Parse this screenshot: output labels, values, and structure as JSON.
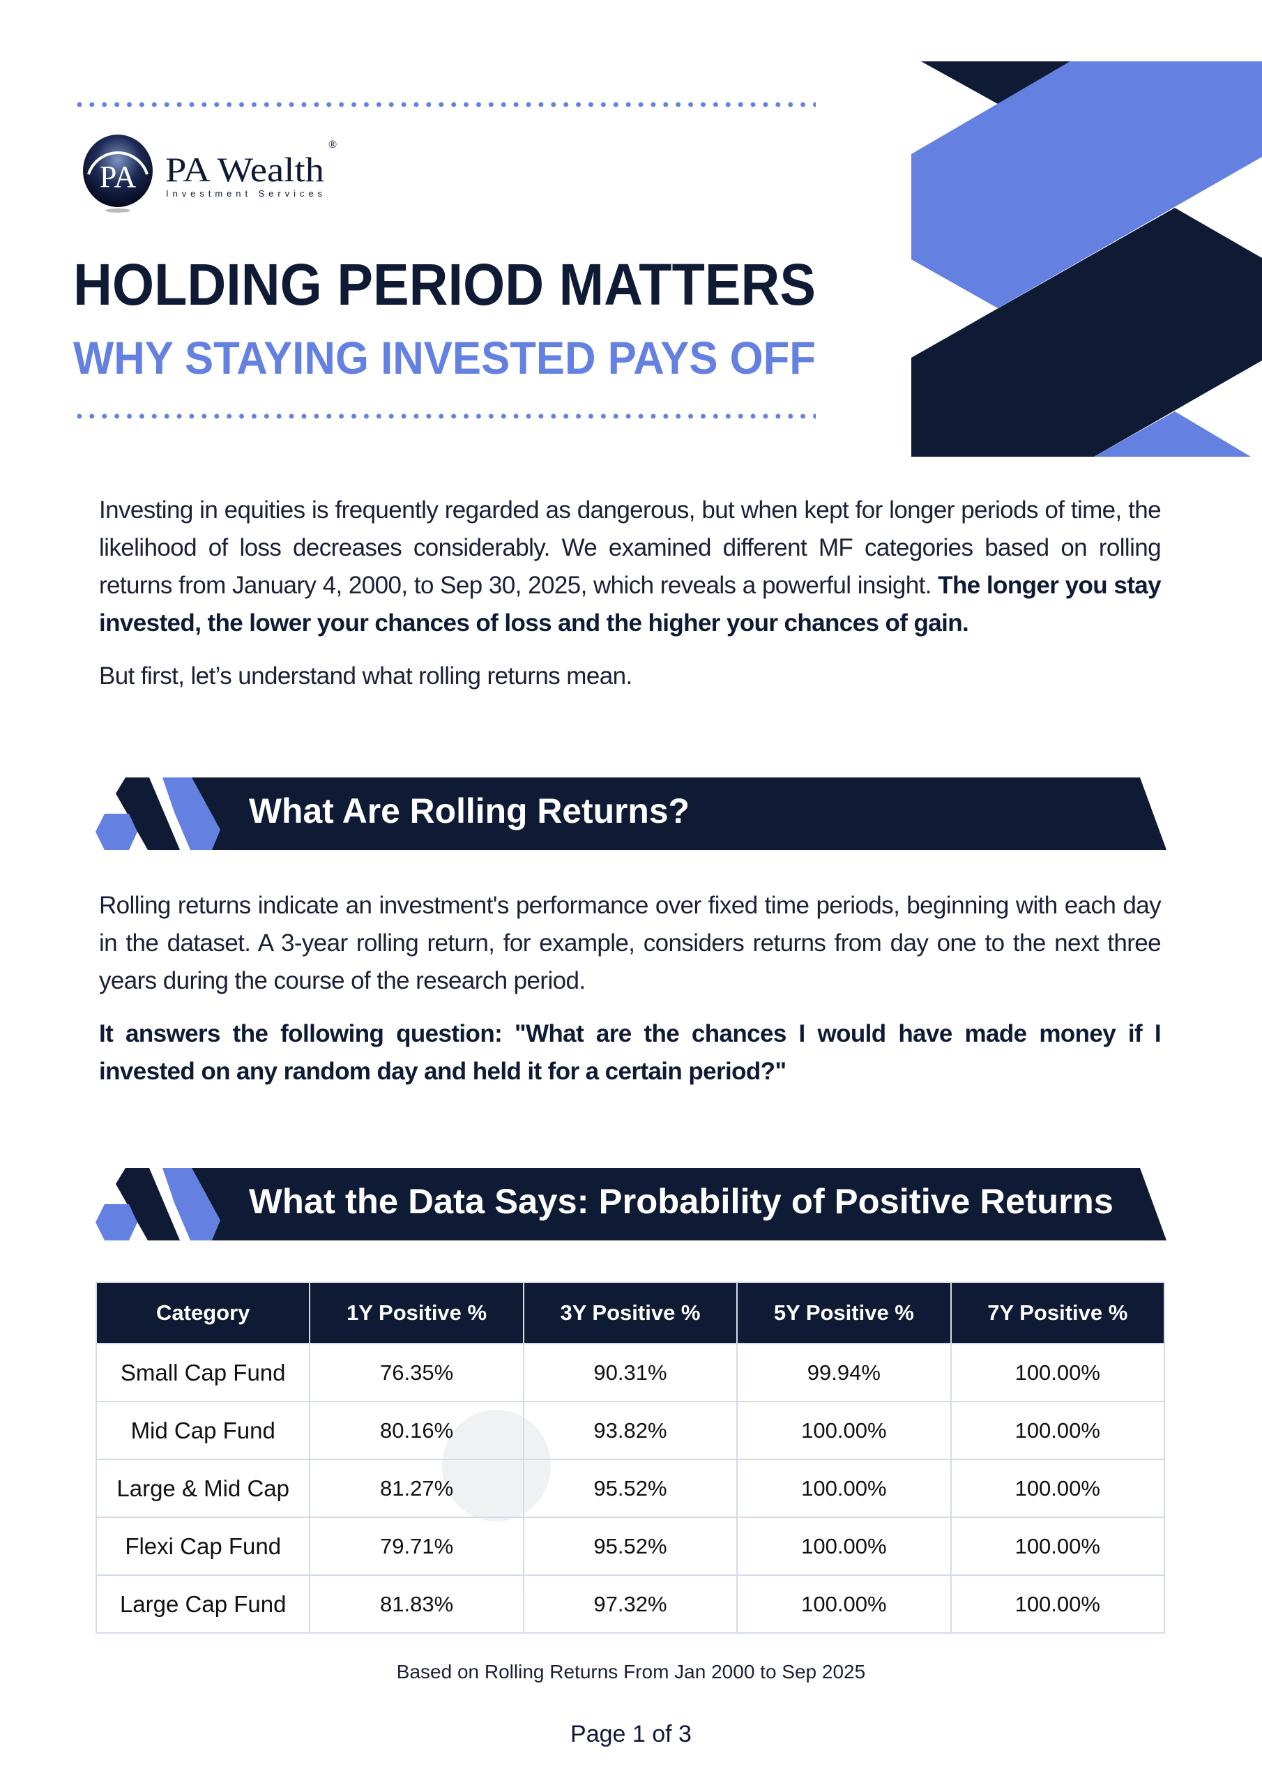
{
  "brand": {
    "name": "PA Wealth",
    "tagline": "Investment Services",
    "monogram": "PA",
    "registered": "®"
  },
  "header": {
    "title": "HOLDING PERIOD MATTERS",
    "subtitle": "WHY STAYING INVESTED PAYS OFF"
  },
  "colors": {
    "navy": "#0f1a35",
    "accent_blue": "#6480e0",
    "text": "#1a2036",
    "grid": "#d5dbe6"
  },
  "intro": {
    "text": "Investing in equities is frequently regarded as dangerous, but when kept for longer periods of time, the likelihood of loss decreases considerably. We examined different MF categories based on rolling returns from January 4, 2000, to Sep 30, 2025,  which reveals a powerful insight. ",
    "bold": "The longer you stay invested, the lower your chances of loss and the higher your chances of gain.",
    "followup": "But first, let’s understand what rolling returns mean."
  },
  "section1": {
    "title": "What Are Rolling Returns?",
    "text": "Rolling returns indicate an investment's performance over fixed time periods, beginning with each day in the dataset. A 3-year rolling return, for example, considers returns from day one to the next three years during the course of the research period.",
    "bold": "It answers the following question: \"What are the chances I would have made money if I invested on any random day and held it for a certain period?\""
  },
  "section2": {
    "title": "What the Data Says: Probability of Positive Returns",
    "table": {
      "headers": [
        "Category",
        "1Y Positive %",
        "3Y Positive %",
        "5Y Positive %",
        "7Y Positive %"
      ],
      "rows": [
        [
          "Small Cap Fund",
          "76.35%",
          "90.31%",
          "99.94%",
          "100.00%"
        ],
        [
          "Mid Cap Fund",
          "80.16%",
          "93.82%",
          "100.00%",
          "100.00%"
        ],
        [
          "Large & Mid Cap",
          "81.27%",
          "95.52%",
          "100.00%",
          "100.00%"
        ],
        [
          "Flexi Cap Fund",
          "79.71%",
          "95.52%",
          "100.00%",
          "100.00%"
        ],
        [
          "Large Cap Fund",
          "81.83%",
          "97.32%",
          "100.00%",
          "100.00%"
        ]
      ]
    },
    "footnote": "Based on Rolling Returns From Jan 2000 to Sep 2025"
  },
  "footer": {
    "page": "Page 1 of 3"
  }
}
